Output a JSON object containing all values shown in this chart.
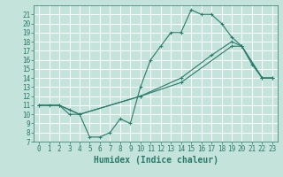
{
  "xlabel": "Humidex (Indice chaleur)",
  "xlim": [
    -0.5,
    23.5
  ],
  "ylim": [
    7,
    22
  ],
  "xticks": [
    0,
    1,
    2,
    3,
    4,
    5,
    6,
    7,
    8,
    9,
    10,
    11,
    12,
    13,
    14,
    15,
    16,
    17,
    18,
    19,
    20,
    21,
    22,
    23
  ],
  "yticks": [
    7,
    8,
    9,
    10,
    11,
    12,
    13,
    14,
    15,
    16,
    17,
    18,
    19,
    20,
    21
  ],
  "bg_color": "#c3e3db",
  "grid_color": "#ffffff",
  "line_color": "#2a7a6a",
  "line1_x": [
    0,
    1,
    2,
    3,
    4,
    5,
    6,
    7,
    8,
    9,
    10,
    11,
    12,
    13,
    14,
    15,
    16,
    17,
    18,
    19,
    20,
    21,
    22,
    23
  ],
  "line1_y": [
    11,
    11,
    11,
    10,
    10,
    7.5,
    7.5,
    8.0,
    9.5,
    9.0,
    13.0,
    16.0,
    17.5,
    19.0,
    19.0,
    21.5,
    21.0,
    21.0,
    20.0,
    18.5,
    17.5,
    15.5,
    14.0,
    14.0
  ],
  "line2_x": [
    0,
    2,
    3,
    4,
    10,
    14,
    17,
    19,
    20,
    22,
    23
  ],
  "line2_y": [
    11,
    11.0,
    10.5,
    10.0,
    12.0,
    14.0,
    16.5,
    18.0,
    17.5,
    14.0,
    14.0
  ],
  "line3_x": [
    0,
    2,
    4,
    10,
    14,
    19,
    20,
    22,
    23
  ],
  "line3_y": [
    11,
    11.0,
    10.0,
    12.0,
    13.5,
    17.5,
    17.5,
    14.0,
    14.0
  ],
  "tick_fontsize": 5.5,
  "xlabel_fontsize": 7
}
